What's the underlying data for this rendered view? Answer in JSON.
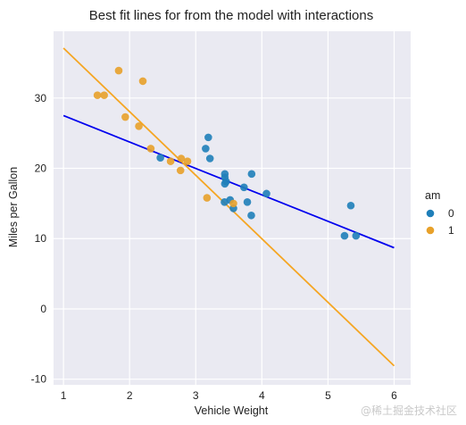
{
  "chart_data": {
    "type": "scatter",
    "title": "Best fit lines for from the model with interactions",
    "xlabel": "Vehicle Weight",
    "ylabel": "Miles per Gallon",
    "xlim": [
      0.85,
      6.25
    ],
    "ylim": [
      -10.8,
      39.5
    ],
    "xticks": [
      1,
      2,
      3,
      4,
      5,
      6
    ],
    "yticks": [
      -10,
      0,
      10,
      20,
      30
    ],
    "grid": true,
    "legend": {
      "title": "am",
      "placement": "right"
    },
    "series": [
      {
        "name": "0",
        "color": "#1f7fb9",
        "points": [
          [
            2.465,
            21.5
          ],
          [
            3.215,
            21.4
          ],
          [
            3.44,
            18.7
          ],
          [
            3.46,
            18.1
          ],
          [
            3.57,
            14.3
          ],
          [
            3.19,
            24.4
          ],
          [
            3.15,
            22.8
          ],
          [
            3.44,
            19.2
          ],
          [
            3.44,
            17.8
          ],
          [
            4.07,
            16.4
          ],
          [
            3.73,
            17.3
          ],
          [
            3.78,
            15.2
          ],
          [
            5.25,
            10.4
          ],
          [
            5.424,
            10.4
          ],
          [
            5.345,
            14.7
          ],
          [
            3.52,
            15.5
          ],
          [
            3.435,
            15.2
          ],
          [
            3.84,
            13.3
          ],
          [
            3.845,
            19.2
          ]
        ],
        "fit_line": {
          "x": [
            1,
            6
          ],
          "y": [
            27.5,
            8.7
          ],
          "color": "#0000ee"
        }
      },
      {
        "name": "1",
        "color": "#e8a12a",
        "points": [
          [
            2.62,
            21.0
          ],
          [
            2.875,
            21.0
          ],
          [
            2.32,
            22.8
          ],
          [
            2.2,
            32.4
          ],
          [
            1.615,
            30.4
          ],
          [
            1.835,
            33.9
          ],
          [
            1.935,
            27.3
          ],
          [
            2.14,
            26.0
          ],
          [
            1.513,
            30.4
          ],
          [
            3.17,
            15.8
          ],
          [
            2.77,
            19.7
          ],
          [
            2.78,
            21.4
          ],
          [
            3.57,
            15.0
          ]
        ],
        "fit_line": {
          "x": [
            1,
            6
          ],
          "y": [
            37.1,
            -8.1
          ],
          "color": "#f5a623"
        }
      }
    ]
  },
  "watermark": "@稀土掘金技术社区"
}
